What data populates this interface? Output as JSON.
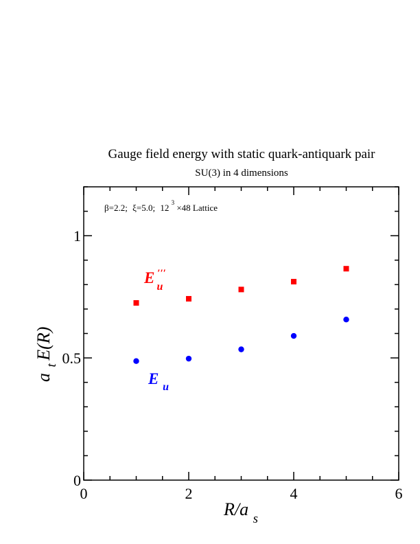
{
  "chart_data": {
    "type": "scatter",
    "title": "Gauge field energy with static quark-antiquark pair",
    "subtitle": "SU(3) in 4 dimensions",
    "annotation": {
      "beta": "β=2.2;",
      "xi": "ξ=5.0;",
      "lattice_prefix": "12",
      "lattice_exp": "3",
      "lattice_suffix": "×48 Lattice"
    },
    "xlabel": {
      "main": "R/a",
      "sub": "s"
    },
    "ylabel": {
      "a": "a",
      "sub": "t",
      "main": "E(R)"
    },
    "xlim": [
      0,
      6
    ],
    "ylim": [
      0,
      1.2
    ],
    "x_ticks": [
      0,
      2,
      4,
      6
    ],
    "y_ticks": [
      0,
      0.5,
      1
    ],
    "x_tick_labels": [
      "0",
      "2",
      "4",
      "6"
    ],
    "y_tick_labels": [
      "0",
      "0.5",
      "1"
    ],
    "grid": false,
    "series": [
      {
        "name_main": "E",
        "name_sub": "u",
        "name_sup": "′′′",
        "color": "#ff0000",
        "marker": "square",
        "x": [
          1,
          2,
          3,
          4,
          5
        ],
        "y": [
          0.725,
          0.742,
          0.78,
          0.812,
          0.865
        ]
      },
      {
        "name_main": "E",
        "name_sub": "u",
        "name_sup": "",
        "color": "#0000ff",
        "marker": "circle",
        "x": [
          1,
          2,
          3,
          4,
          5
        ],
        "y": [
          0.487,
          0.497,
          0.535,
          0.59,
          0.657
        ]
      }
    ]
  }
}
